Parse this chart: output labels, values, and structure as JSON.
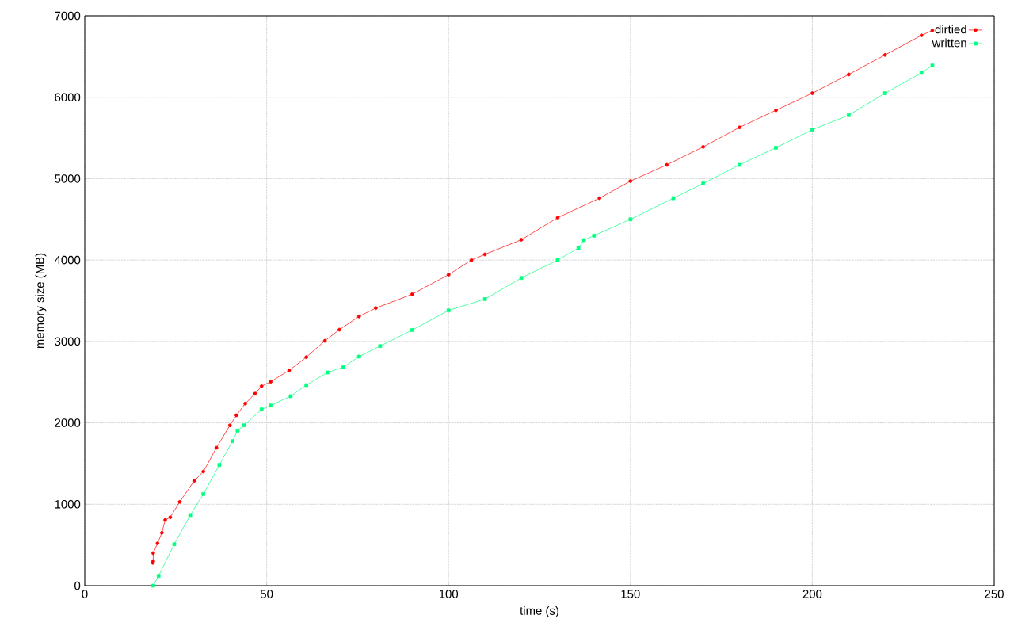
{
  "chart_data": {
    "type": "line",
    "xlabel": "time (s)",
    "ylabel": "memory size (MB)",
    "xlim": [
      0,
      250
    ],
    "ylim": [
      0,
      7000
    ],
    "xticks": [
      0,
      50,
      100,
      150,
      200,
      250
    ],
    "yticks": [
      0,
      1000,
      2000,
      3000,
      4000,
      5000,
      6000,
      7000
    ],
    "grid": true,
    "legend": "top right",
    "line_style": "solid",
    "series": [
      {
        "name": "dirtied",
        "color": "#ff0000",
        "marker": "circle",
        "x": [
          18.7,
          18.8,
          18.8,
          20.0,
          21.2,
          22.1,
          23.5,
          26.1,
          30.1,
          32.6,
          36.2,
          39.9,
          41.7,
          44.1,
          46.8,
          48.6,
          51.1,
          56.2,
          60.9,
          66.0,
          70.0,
          75.4,
          80,
          90,
          100,
          106.3,
          110,
          120,
          130,
          141.5,
          150,
          160,
          170,
          180,
          190,
          200,
          210,
          220,
          230,
          233
        ],
        "values": [
          280,
          300,
          400,
          520,
          650,
          808,
          840,
          1029,
          1288,
          1402,
          1694,
          1970,
          2093,
          2236,
          2359,
          2450,
          2505,
          2645,
          2807,
          3008,
          3145,
          3307,
          3410,
          3580,
          3820,
          4000,
          4070,
          4250,
          4520,
          4760,
          4970,
          5170,
          5390,
          5630,
          5840,
          6050,
          6280,
          6520,
          6760,
          6820
        ]
      },
      {
        "name": "written",
        "color": "#00ff7f",
        "marker": "square",
        "x": [
          18.8,
          20.3,
          24.6,
          29.0,
          32.6,
          37.0,
          40.6,
          42.0,
          43.8,
          48.6,
          51.1,
          56.6,
          60.9,
          66.7,
          71.1,
          75.4,
          81.2,
          90,
          100,
          110,
          120,
          130,
          135.7,
          137.2,
          140,
          150,
          161.8,
          170,
          180,
          190,
          200,
          210,
          220,
          230,
          233
        ],
        "values": [
          0,
          120,
          509,
          867,
          1126,
          1483,
          1775,
          1905,
          1970,
          2165,
          2213,
          2327,
          2463,
          2619,
          2684,
          2814,
          2943,
          3140,
          3381,
          3520,
          3780,
          4000,
          4147,
          4245,
          4300,
          4500,
          4760,
          4940,
          5170,
          5380,
          5600,
          5780,
          6050,
          6300,
          6390
        ]
      }
    ]
  }
}
